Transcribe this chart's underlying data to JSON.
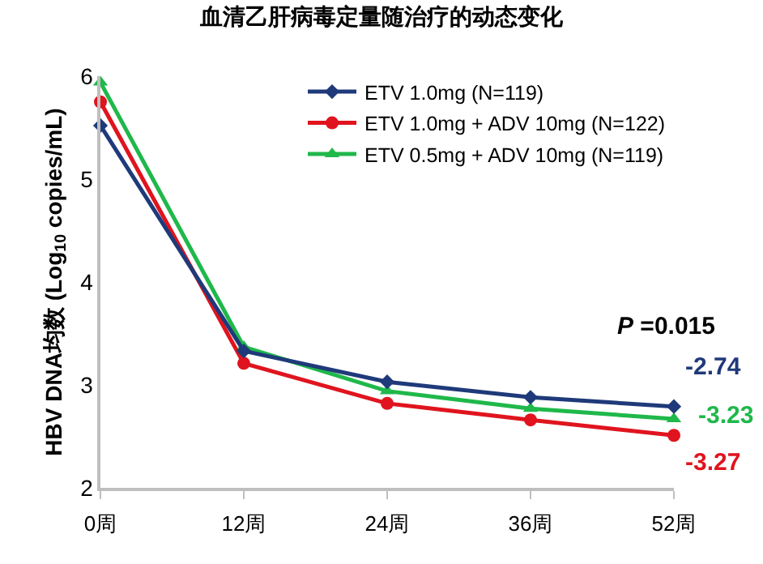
{
  "chart_data": {
    "type": "line",
    "title": "血清乙肝病毒定量随治疗的动态变化",
    "ylabel": "HBV DNA均数 (Log$_{10}$ copies/mL)",
    "categories": [
      "0周",
      "12周",
      "24周",
      "36周",
      "52周"
    ],
    "series": [
      {
        "name": "ETV 1.0mg (N=119)",
        "color": "#1f3a7a",
        "marker": "diamond",
        "values": [
          5.52,
          3.33,
          3.03,
          2.88,
          2.79
        ]
      },
      {
        "name": "ETV 1.0mg + ADV 10mg (N=122)",
        "color": "#e0141e",
        "marker": "circle",
        "values": [
          5.75,
          3.21,
          2.82,
          2.66,
          2.51
        ]
      },
      {
        "name": "ETV 0.5mg + ADV 10mg (N=119)",
        "color": "#1fb84a",
        "marker": "triangle",
        "values": [
          5.94,
          3.37,
          2.94,
          2.77,
          2.67
        ]
      }
    ],
    "annotations": [
      "-2.74",
      "-3.27",
      "-3.23",
      "P =0.015"
    ],
    "ylim": [
      2,
      6
    ],
    "yticks": [
      2,
      3,
      4,
      5,
      6
    ],
    "legend": "top right",
    "line_style": "solid"
  }
}
